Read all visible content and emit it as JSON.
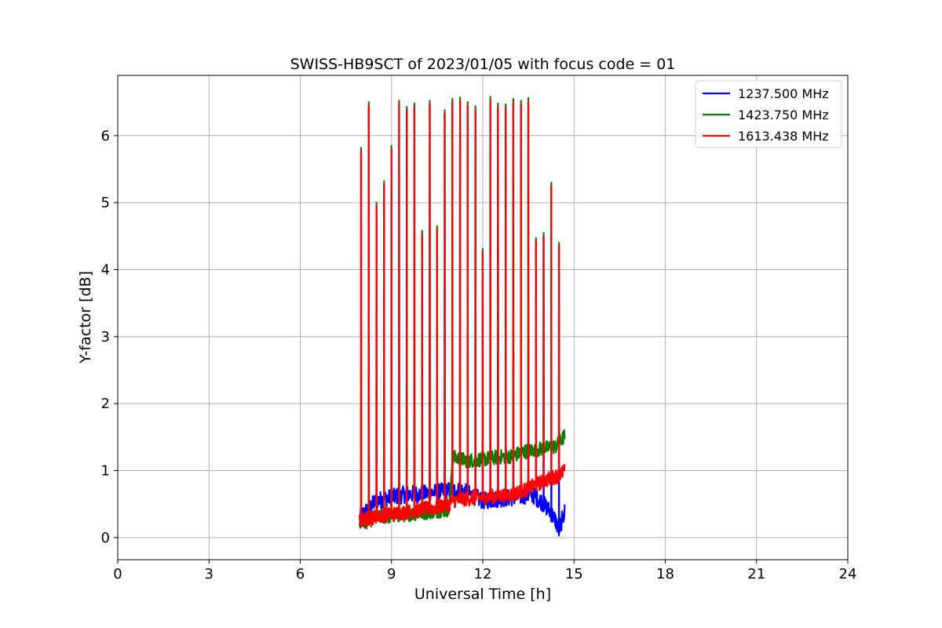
{
  "chart_data": {
    "type": "line",
    "title": "SWISS-HB9SCT of 2023/01/05 with focus code = 01",
    "xlabel": "Universal Time [h]",
    "ylabel": "Y-factor [dB]",
    "xlim": [
      0,
      24
    ],
    "ylim": [
      -0.33,
      6.9
    ],
    "xticks": [
      0,
      3,
      6,
      9,
      12,
      15,
      18,
      21,
      24
    ],
    "yticks": [
      0,
      1,
      2,
      3,
      4,
      5,
      6
    ],
    "grid": true,
    "legend_position": "top-right",
    "colors": {
      "1237.500 MHz": "#0000ff",
      "1423.750 MHz": "#008000",
      "1613.438 MHz": "#ff0000"
    },
    "series": [
      {
        "name": "1237.500 MHz",
        "x": [
          7.95,
          8.5,
          9.0,
          9.5,
          10.0,
          10.5,
          10.9,
          11.3,
          11.7,
          12.0,
          12.5,
          13.0,
          13.3,
          13.6,
          13.9,
          14.2,
          14.4,
          14.5,
          14.7
        ],
        "y": [
          0.3,
          0.55,
          0.6,
          0.65,
          0.65,
          0.68,
          0.7,
          0.7,
          0.62,
          0.55,
          0.58,
          0.6,
          0.62,
          0.65,
          0.55,
          0.4,
          0.25,
          0.1,
          0.4
        ]
      },
      {
        "name": "1423.750 MHz",
        "x": [
          7.95,
          8.5,
          9.0,
          9.5,
          10.0,
          10.5,
          10.9,
          11.0,
          11.5,
          12.0,
          12.5,
          13.0,
          13.3,
          13.6,
          14.0,
          14.4,
          14.7
        ],
        "y": [
          0.2,
          0.3,
          0.32,
          0.35,
          0.37,
          0.4,
          0.42,
          1.2,
          1.15,
          1.17,
          1.2,
          1.22,
          1.28,
          1.3,
          1.33,
          1.36,
          1.52
        ]
      },
      {
        "name": "1613.438 MHz",
        "x": [
          7.95,
          8.5,
          9.0,
          9.5,
          10.0,
          10.5,
          10.9,
          11.0,
          11.5,
          12.0,
          12.5,
          13.0,
          13.3,
          13.35,
          13.8,
          14.2,
          14.5,
          14.7
        ],
        "y": [
          0.25,
          0.32,
          0.35,
          0.38,
          0.42,
          0.45,
          0.5,
          0.55,
          0.58,
          0.6,
          0.62,
          0.65,
          0.7,
          0.7,
          0.8,
          0.88,
          0.93,
          1.0
        ]
      }
    ],
    "spikes": [
      {
        "x": 8.0,
        "peak": 5.82
      },
      {
        "x": 8.25,
        "peak": 6.5
      },
      {
        "x": 8.5,
        "peak": 5.0
      },
      {
        "x": 8.75,
        "peak": 5.32
      },
      {
        "x": 9.0,
        "peak": 5.85
      },
      {
        "x": 9.25,
        "peak": 6.52
      },
      {
        "x": 9.5,
        "peak": 6.43
      },
      {
        "x": 9.75,
        "peak": 6.48
      },
      {
        "x": 10.0,
        "peak": 4.58
      },
      {
        "x": 10.25,
        "peak": 6.52
      },
      {
        "x": 10.5,
        "peak": 4.65
      },
      {
        "x": 10.75,
        "peak": 6.38
      },
      {
        "x": 11.0,
        "peak": 6.55
      },
      {
        "x": 11.25,
        "peak": 6.57
      },
      {
        "x": 11.5,
        "peak": 6.5
      },
      {
        "x": 11.75,
        "peak": 6.44
      },
      {
        "x": 12.0,
        "peak": 4.31
      },
      {
        "x": 12.25,
        "peak": 6.58
      },
      {
        "x": 12.5,
        "peak": 6.48
      },
      {
        "x": 12.75,
        "peak": 6.47
      },
      {
        "x": 13.0,
        "peak": 6.55
      },
      {
        "x": 13.25,
        "peak": 6.52
      },
      {
        "x": 13.5,
        "peak": 6.56
      },
      {
        "x": 13.75,
        "peak": 4.47
      },
      {
        "x": 14.0,
        "peak": 4.55
      },
      {
        "x": 14.25,
        "peak": 5.3
      },
      {
        "x": 14.5,
        "peak": 4.4
      }
    ]
  }
}
